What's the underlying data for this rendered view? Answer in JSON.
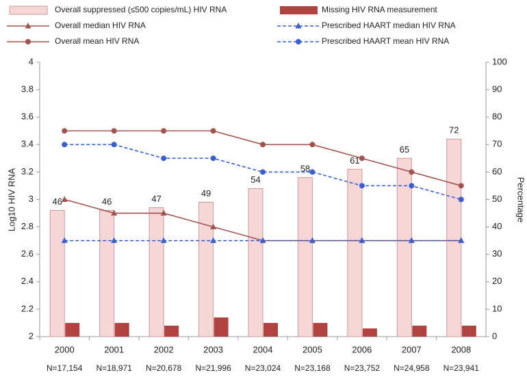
{
  "chart_data": {
    "type": "bar_line",
    "categories": [
      "2000",
      "2001",
      "2002",
      "2003",
      "2004",
      "2005",
      "2006",
      "2007",
      "2008"
    ],
    "sample_sizes": [
      "N=17,154",
      "N=18,971",
      "N=20,678",
      "N=21,996",
      "N=23,024",
      "N=23,168",
      "N=23,752",
      "N=24,958",
      "N=23,941"
    ],
    "ylabel": "Log10 HIV RNA",
    "y2label": "Percentage",
    "ylim": [
      2,
      4
    ],
    "yticks": [
      2,
      2.2,
      2.4,
      2.6,
      2.8,
      3,
      3.2,
      3.4,
      3.6,
      3.8,
      4
    ],
    "y2lim": [
      0,
      100
    ],
    "y2ticks": [
      0,
      10,
      20,
      30,
      40,
      50,
      60,
      70,
      80,
      90,
      100
    ],
    "series": [
      {
        "name": "Overall suppressed (≤500 copies/mL) HIV RNA",
        "kind": "bar",
        "axis": "y2",
        "color": "#f6d6d6",
        "edge": "#c99a9a",
        "labels": true,
        "values": [
          46,
          46,
          47,
          49,
          54,
          58,
          61,
          65,
          72
        ]
      },
      {
        "name": "Missing HIV RNA measurement",
        "kind": "bar",
        "axis": "y2",
        "color": "#b0433f",
        "values": [
          5,
          5,
          4,
          7,
          5,
          5,
          3,
          4,
          4
        ]
      },
      {
        "name": "Overall median HIV RNA",
        "kind": "line",
        "color": "#a3534f",
        "marker": "triangle",
        "dashed": false,
        "values": [
          3.0,
          2.9,
          2.9,
          2.8,
          2.7,
          2.7,
          2.7,
          2.7,
          2.7
        ]
      },
      {
        "name": "Prescribed HAART median HIV RNA",
        "kind": "line",
        "color": "#3b5fcc",
        "marker": "triangle",
        "dashed": true,
        "values": [
          2.7,
          2.7,
          2.7,
          2.7,
          2.7,
          2.7,
          2.7,
          2.7,
          2.7
        ]
      },
      {
        "name": "Overall mean HIV RNA",
        "kind": "line",
        "color": "#a3534f",
        "marker": "circle",
        "dashed": false,
        "values": [
          3.5,
          3.5,
          3.5,
          3.5,
          3.4,
          3.4,
          3.3,
          3.2,
          3.1
        ]
      },
      {
        "name": "Prescribed HAART mean HIV RNA",
        "kind": "line",
        "color": "#3b5fcc",
        "marker": "circle",
        "dashed": true,
        "values": [
          3.4,
          3.4,
          3.3,
          3.3,
          3.2,
          3.2,
          3.1,
          3.1,
          3.0
        ]
      }
    ]
  }
}
